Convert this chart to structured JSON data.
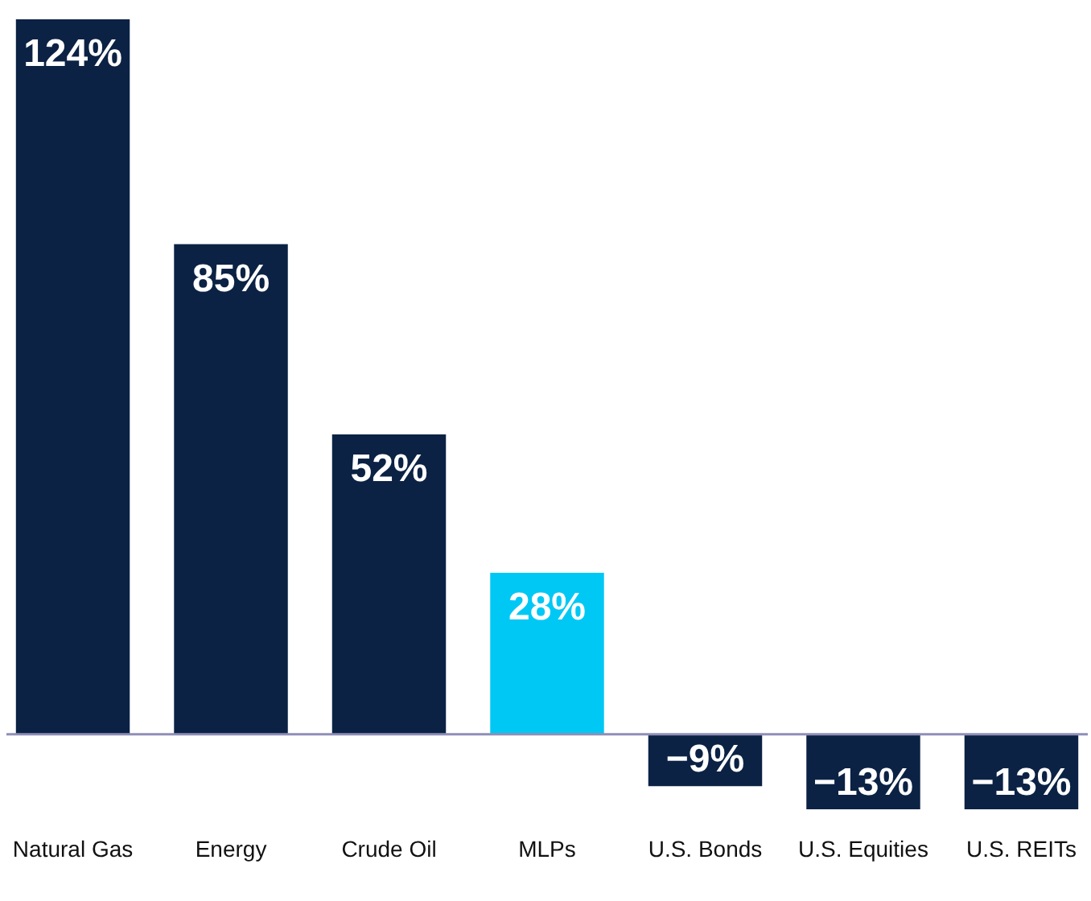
{
  "chart_data": {
    "type": "bar",
    "categories": [
      "Natural Gas",
      "Energy",
      "Crude Oil",
      "MLPs",
      "U.S. Bonds",
      "U.S. Equities",
      "U.S. REITs"
    ],
    "values": [
      124,
      85,
      52,
      28,
      -9,
      -13,
      -13
    ],
    "colors": [
      "#0b2244",
      "#0b2244",
      "#0b2244",
      "#00c8f5",
      "#0b2244",
      "#0b2244",
      "#0b2244"
    ],
    "value_labels": [
      "124%",
      "85%",
      "52%",
      "28%",
      "−9%",
      "−13%",
      "−13%"
    ],
    "ref_lines": [
      {
        "axis": "y",
        "value": 0,
        "color": "#8f8fb8"
      }
    ]
  }
}
